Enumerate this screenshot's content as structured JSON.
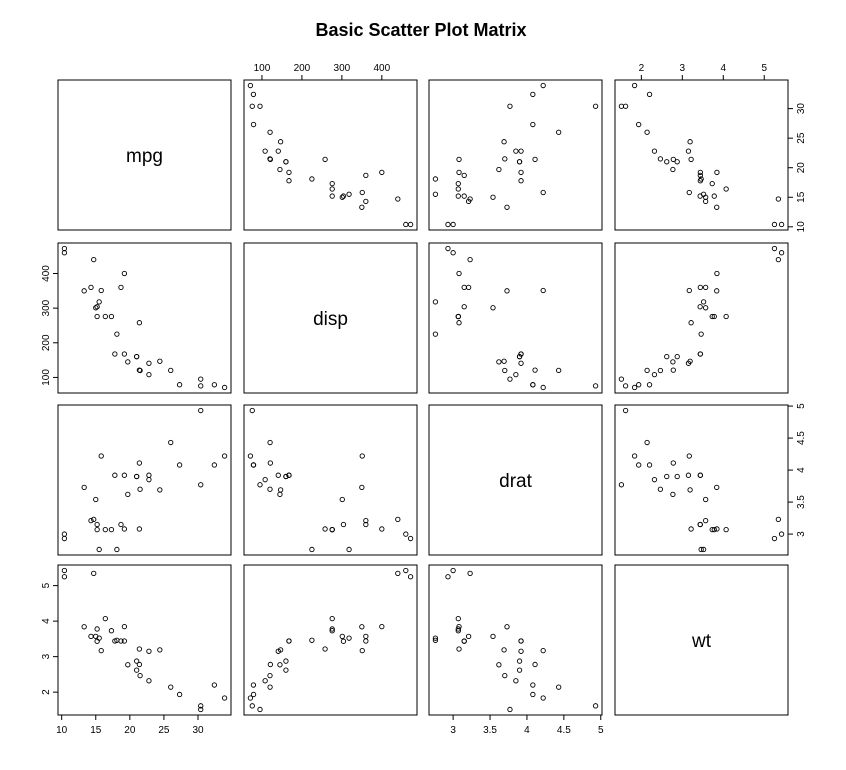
{
  "chart_data": {
    "type": "scatter",
    "title": "Basic Scatter Plot Matrix",
    "variables": [
      "mpg",
      "disp",
      "drat",
      "wt"
    ],
    "axes": {
      "mpg": {
        "range": [
          10.4,
          33.9
        ],
        "ticks": [
          10,
          15,
          20,
          25,
          30
        ]
      },
      "disp": {
        "range": [
          71.1,
          472
        ],
        "ticks": [
          100,
          200,
          300,
          400
        ]
      },
      "drat": {
        "range": [
          2.76,
          4.93
        ],
        "ticks": [
          3.0,
          3.5,
          4.0,
          4.5,
          5.0
        ]
      },
      "wt": {
        "range": [
          1.513,
          5.424
        ],
        "ticks": [
          2,
          3,
          4,
          5
        ]
      }
    },
    "tick_positions": {
      "top": [
        "disp",
        "wt"
      ],
      "bottom": [
        "mpg",
        "drat"
      ],
      "left": [
        "disp",
        "wt"
      ],
      "right": [
        "mpg",
        "drat"
      ]
    },
    "observations": {
      "mpg": [
        21.0,
        21.0,
        22.8,
        21.4,
        18.7,
        18.1,
        14.3,
        24.4,
        22.8,
        19.2,
        17.8,
        16.4,
        17.3,
        15.2,
        10.4,
        10.4,
        14.7,
        32.4,
        30.4,
        33.9,
        21.5,
        15.5,
        15.2,
        13.3,
        19.2,
        27.3,
        26.0,
        30.4,
        15.8,
        19.7,
        15.0,
        21.4
      ],
      "disp": [
        160,
        160,
        108,
        258,
        360,
        225,
        360,
        146.7,
        140.8,
        167.6,
        167.6,
        275.8,
        275.8,
        275.8,
        472,
        460,
        440,
        78.7,
        75.7,
        71.1,
        120.1,
        318,
        304,
        350,
        400,
        79,
        120.3,
        95.1,
        351,
        145,
        301,
        121
      ],
      "drat": [
        3.9,
        3.9,
        3.85,
        3.08,
        3.15,
        2.76,
        3.21,
        3.69,
        3.92,
        3.92,
        3.92,
        3.07,
        3.07,
        3.07,
        2.93,
        3.0,
        3.23,
        4.08,
        4.93,
        4.22,
        3.7,
        2.76,
        3.15,
        3.73,
        3.08,
        4.08,
        4.43,
        3.77,
        4.22,
        3.62,
        3.54,
        4.11
      ],
      "wt": [
        2.62,
        2.875,
        2.32,
        3.215,
        3.44,
        3.46,
        3.57,
        3.19,
        3.15,
        3.44,
        3.44,
        4.07,
        3.73,
        3.78,
        5.25,
        5.424,
        5.345,
        2.2,
        1.615,
        1.835,
        2.465,
        3.52,
        3.435,
        3.84,
        3.845,
        1.935,
        2.14,
        1.513,
        3.17,
        2.77,
        3.57,
        2.78
      ]
    }
  }
}
